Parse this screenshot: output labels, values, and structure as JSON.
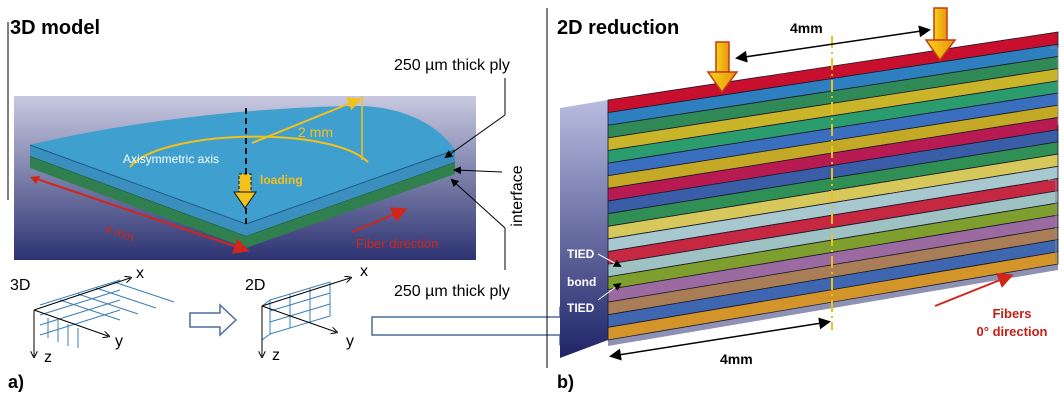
{
  "left_panel": {
    "title": "3D model",
    "top_ply_label": "250 µm thick ply",
    "bottom_ply_label": "250 µm thick ply",
    "interface_label": "interface",
    "axis_label": "Axisymmetric axis",
    "radius_label": "2 mm",
    "loading_label": "loading",
    "width_label": "4 mm",
    "fiber_label": "Fiber direction",
    "subfigure_label": "a)"
  },
  "mesh_3d": {
    "label": "3D",
    "axis_x": "x",
    "axis_y": "y",
    "axis_z": "z"
  },
  "mesh_2d": {
    "label": "2D",
    "axis_x": "x",
    "axis_y": "y",
    "axis_z": "z"
  },
  "right_panel": {
    "title": "2D reduction",
    "top_dimension": "4mm",
    "bottom_dimension": "4mm",
    "tied_top": "TIED",
    "bond": "bond",
    "tied_bottom": "TIED",
    "fibers_line1": "Fibers",
    "fibers_line2": "0° direction",
    "subfigure_label": "b)"
  },
  "colors": {
    "ply_blue": "#3f9fcf",
    "ply_green": "#2f7f4f",
    "accent_yellow": "#f2c21a",
    "accent_red": "#d0261c",
    "background_navy": "#2d3372"
  },
  "layer_colors": [
    "#c8102e",
    "#2e7fbf",
    "#2f8a57",
    "#c9b42a",
    "#2a9c6e",
    "#3a6fbf",
    "#c4a927",
    "#b81a52",
    "#3a5da8",
    "#2f8f54",
    "#d6c85a",
    "#a7c8cf",
    "#c62842",
    "#9ec2c4",
    "#7e9f2e",
    "#9b6aa0",
    "#a97e56",
    "#3f66b0",
    "#d3952a"
  ]
}
